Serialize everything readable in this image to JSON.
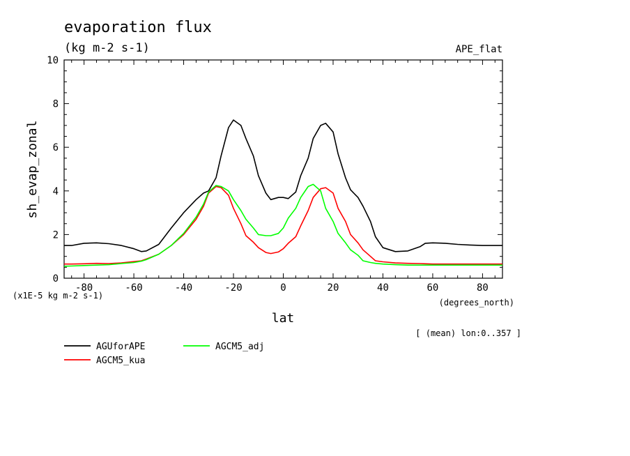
{
  "chart_data": {
    "type": "line",
    "title": "evaporation flux",
    "subtitle": "(kg m-2 s-1)",
    "tag": "APE_flat",
    "xlabel": "lat",
    "xunits": "(degrees_north)",
    "ylabel": "sh_evap_zonal",
    "yscale_note": "(x1E-5 kg m-2 s-1)",
    "footnote": "[ (mean) lon:0..357 ]",
    "xlim": [
      -88,
      88
    ],
    "ylim": [
      0,
      10
    ],
    "x_ticks": [
      -80,
      -60,
      -40,
      -20,
      0,
      20,
      40,
      60,
      80
    ],
    "y_ticks": [
      0,
      2,
      4,
      6,
      8,
      10
    ],
    "x": [
      -88,
      -85,
      -80,
      -75,
      -70,
      -65,
      -60,
      -57,
      -55,
      -50,
      -45,
      -40,
      -35,
      -32,
      -30,
      -27,
      -25,
      -22,
      -20,
      -17,
      -15,
      -12,
      -10,
      -7,
      -5,
      -2,
      0,
      2,
      5,
      7,
      10,
      12,
      15,
      17,
      20,
      22,
      25,
      27,
      30,
      32,
      35,
      37,
      40,
      45,
      50,
      55,
      57,
      60,
      65,
      70,
      75,
      80,
      85,
      88
    ],
    "series": [
      {
        "name": "AGUforAPE",
        "color": "#000000",
        "values": [
          1.5,
          1.5,
          1.6,
          1.62,
          1.58,
          1.5,
          1.35,
          1.22,
          1.25,
          1.55,
          2.3,
          3.0,
          3.6,
          3.9,
          4.0,
          4.6,
          5.6,
          6.9,
          7.25,
          7.0,
          6.4,
          5.6,
          4.7,
          3.9,
          3.6,
          3.7,
          3.7,
          3.65,
          3.95,
          4.7,
          5.5,
          6.4,
          7.0,
          7.1,
          6.7,
          5.7,
          4.6,
          4.05,
          3.7,
          3.3,
          2.6,
          1.9,
          1.4,
          1.22,
          1.25,
          1.45,
          1.6,
          1.62,
          1.6,
          1.55,
          1.52,
          1.5,
          1.5,
          1.5
        ]
      },
      {
        "name": "AGCM5_kua",
        "color": "#ff0000",
        "values": [
          0.65,
          0.65,
          0.66,
          0.68,
          0.67,
          0.7,
          0.76,
          0.8,
          0.88,
          1.1,
          1.5,
          2.0,
          2.7,
          3.3,
          3.9,
          4.2,
          4.15,
          3.8,
          3.2,
          2.5,
          1.95,
          1.65,
          1.4,
          1.18,
          1.13,
          1.2,
          1.35,
          1.6,
          1.9,
          2.4,
          3.1,
          3.7,
          4.1,
          4.15,
          3.9,
          3.2,
          2.6,
          2.0,
          1.62,
          1.3,
          1.0,
          0.8,
          0.75,
          0.7,
          0.68,
          0.67,
          0.66,
          0.65,
          0.65,
          0.65,
          0.65,
          0.65,
          0.65,
          0.65
        ]
      },
      {
        "name": "AGCM5_adj",
        "color": "#00ff00",
        "values": [
          0.55,
          0.56,
          0.58,
          0.6,
          0.62,
          0.67,
          0.72,
          0.78,
          0.85,
          1.1,
          1.5,
          2.05,
          2.8,
          3.4,
          3.95,
          4.25,
          4.2,
          4.0,
          3.6,
          3.1,
          2.7,
          2.3,
          2.0,
          1.95,
          1.95,
          2.05,
          2.3,
          2.75,
          3.2,
          3.7,
          4.2,
          4.3,
          4.0,
          3.2,
          2.6,
          2.05,
          1.62,
          1.3,
          1.05,
          0.8,
          0.72,
          0.68,
          0.65,
          0.62,
          0.6,
          0.6,
          0.6,
          0.6,
          0.6,
          0.6,
          0.6,
          0.6,
          0.6,
          0.6
        ]
      }
    ],
    "grid": false,
    "legend": "bottom-left"
  }
}
